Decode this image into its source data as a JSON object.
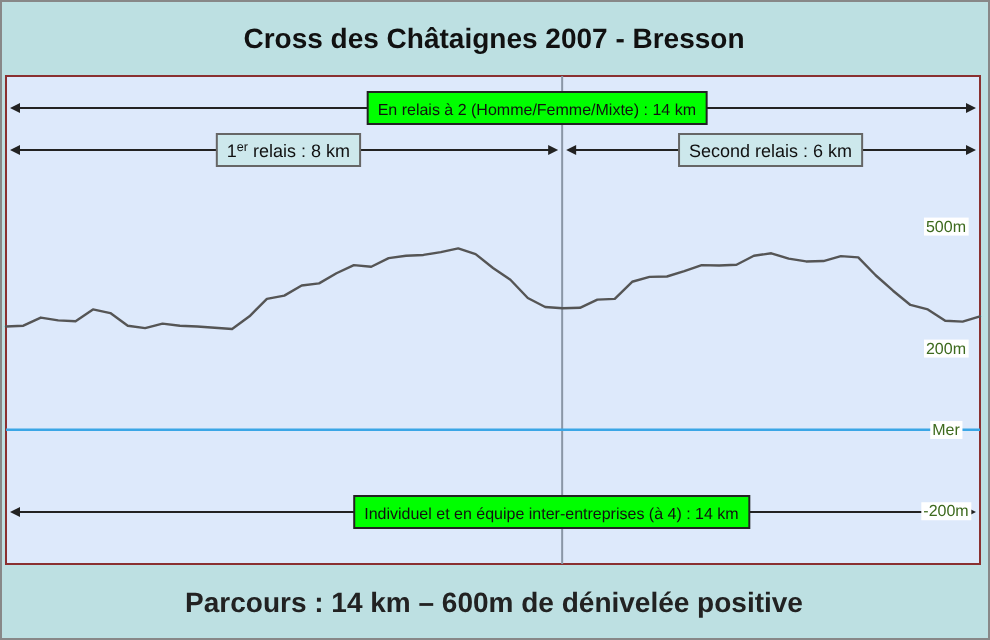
{
  "chart_data": {
    "type": "line",
    "title": "Cross des Châtaignes 2007 - Bresson",
    "categories": [
      null,
      null,
      null,
      null,
      null,
      null,
      null,
      null,
      null,
      null,
      null,
      null,
      null,
      null,
      null,
      null,
      null,
      null,
      null,
      null,
      null,
      null,
      null,
      null,
      null,
      null,
      null,
      null,
      null,
      null,
      null,
      null,
      null,
      null,
      null,
      null,
      null,
      null,
      null,
      null,
      null,
      null,
      null,
      null,
      null,
      null,
      null,
      null,
      null,
      null,
      null,
      null,
      null,
      null,
      null,
      null,
      null
    ],
    "series": [
      {
        "color": "#555555",
        "values": [
          254,
          256,
          276,
          269,
          267,
          296,
          287,
          256,
          250,
          261,
          256,
          254,
          251,
          248,
          279,
          322,
          330,
          355,
          360,
          385,
          405,
          401,
          422,
          428,
          430,
          437,
          446,
          432,
          398,
          369,
          324,
          302,
          299,
          300,
          320,
          322,
          364,
          376,
          377,
          390,
          405,
          404,
          406,
          428,
          434,
          421,
          414,
          415,
          427,
          424,
          380,
          342,
          307,
          296,
          268,
          266,
          279
        ]
      }
    ],
    "ylim": [
      -330,
      870
    ],
    "yticks": [
      {
        "value": 500,
        "label": "500m"
      },
      {
        "value": 200,
        "label": "200m"
      },
      {
        "value": 0,
        "label": "Mer"
      },
      {
        "value": -200,
        "label": "-200m"
      }
    ],
    "tick_labels": "y",
    "grid": false,
    "marker": "none",
    "line_style": "solid",
    "ref_lines": [
      {
        "axis": "y",
        "value": 0,
        "color": "#3aa6e6"
      }
    ],
    "annotations": [
      "En relais à 2 (Homme/Femme/Mixte) : 14 km",
      "1$^{er}$ relais : 8 km",
      "Second relais : 6 km",
      "Individuel et en équipe inter-entreprises (à 4) : 14 km",
      "Parcours : 14 km – 600m de dénivelée positive"
    ]
  }
}
